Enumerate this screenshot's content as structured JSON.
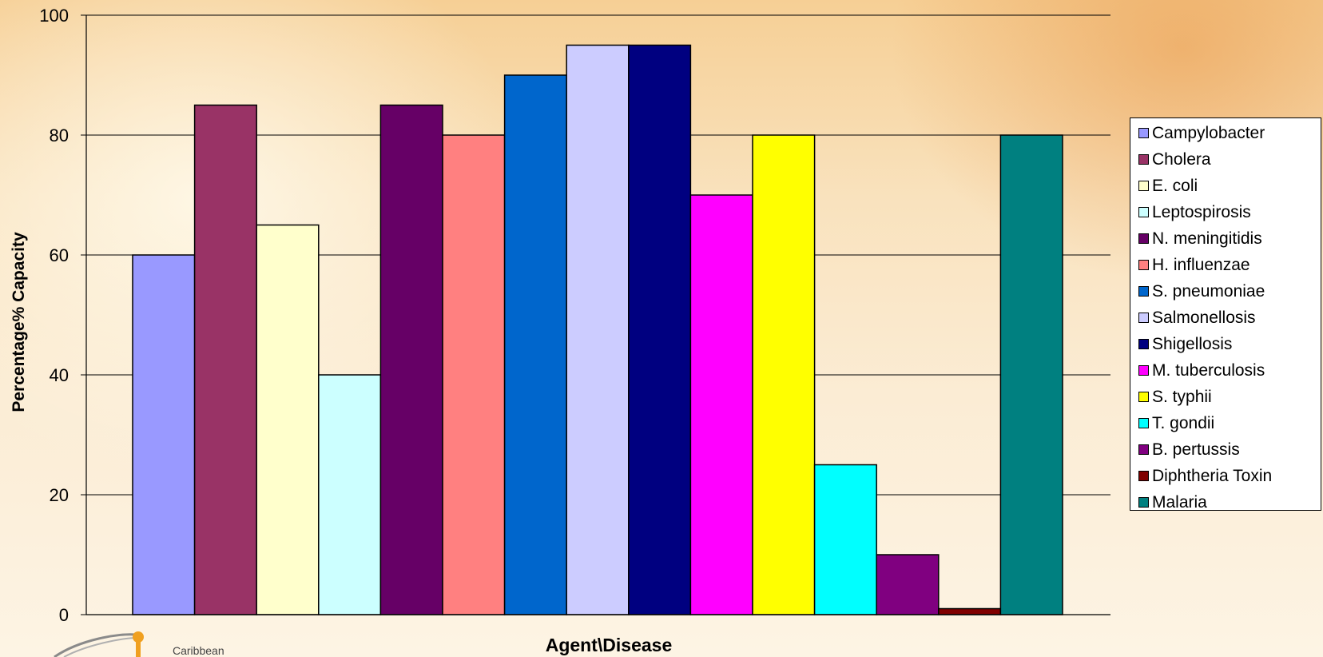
{
  "chart_data": {
    "type": "bar",
    "title": "",
    "xlabel": "Agent\\Disease",
    "ylabel": "Percentage% Capacity",
    "ylim": [
      0,
      100
    ],
    "yticks": [
      0,
      20,
      40,
      60,
      80,
      100
    ],
    "grid": true,
    "legend_position": "right",
    "series": [
      {
        "name": "Campylobacter",
        "value": 60,
        "color": "#9999ff"
      },
      {
        "name": "Cholera",
        "value": 85,
        "color": "#993366"
      },
      {
        "name": "E. coli",
        "value": 65,
        "color": "#ffffcc"
      },
      {
        "name": "Leptospirosis",
        "value": 40,
        "color": "#ccffff"
      },
      {
        "name": "N. meningitidis",
        "value": 85,
        "color": "#660066"
      },
      {
        "name": "H. influenzae",
        "value": 80,
        "color": "#ff8080"
      },
      {
        "name": "S. pneumoniae",
        "value": 90,
        "color": "#0066cc"
      },
      {
        "name": "Salmonellosis",
        "value": 95,
        "color": "#ccccff"
      },
      {
        "name": "Shigellosis",
        "value": 95,
        "color": "#000080"
      },
      {
        "name": "M. tuberculosis",
        "value": 70,
        "color": "#ff00ff"
      },
      {
        "name": "S. typhii",
        "value": 80,
        "color": "#ffff00"
      },
      {
        "name": "T. gondii",
        "value": 25,
        "color": "#00ffff"
      },
      {
        "name": "B. pertussis",
        "value": 10,
        "color": "#800080"
      },
      {
        "name": "Diphtheria Toxin",
        "value": 1,
        "color": "#800000"
      },
      {
        "name": "Malaria",
        "value": 80,
        "color": "#008080"
      }
    ]
  },
  "logo": {
    "text": "Caribbean"
  }
}
